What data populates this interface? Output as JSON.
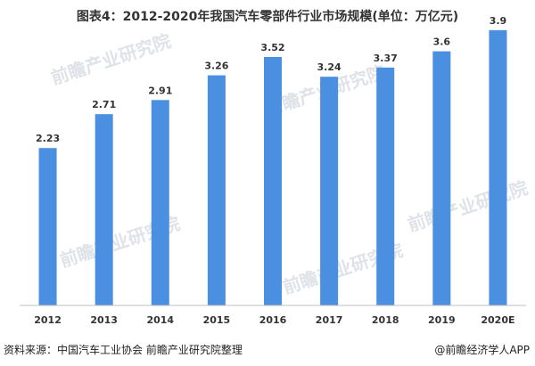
{
  "chart_data": {
    "type": "bar",
    "title": "图表4：2012-2020年我国汽车零部件行业市场规模(单位：万亿元)",
    "categories": [
      "2012",
      "2013",
      "2014",
      "2015",
      "2016",
      "2017",
      "2018",
      "2019",
      "2020E"
    ],
    "values": [
      2.23,
      2.71,
      2.91,
      3.26,
      3.52,
      3.24,
      3.37,
      3.6,
      3.9
    ],
    "value_labels": [
      "2.23",
      "2.71",
      "2.91",
      "3.26",
      "3.52",
      "3.24",
      "3.37",
      "3.6",
      "3.9"
    ],
    "ylim": [
      0,
      4.1
    ],
    "xlabel": "",
    "ylabel": "",
    "grid": false,
    "legend": "none",
    "bar_color": "#4a8fe0"
  },
  "watermark": "前瞻产业研究院",
  "footer": {
    "source": "资料来源：中国汽车工业协会 前瞻产业研究院整理",
    "app": "@前瞻经济学人APP"
  }
}
